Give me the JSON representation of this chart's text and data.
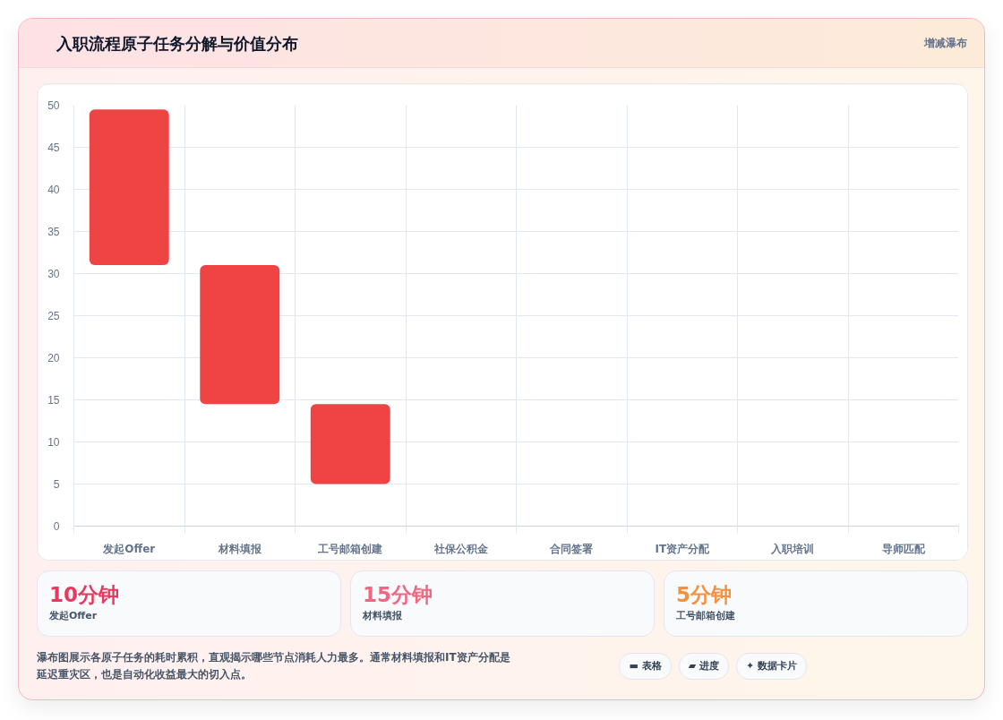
{
  "chart_data": {
    "type": "bar",
    "title": "入职流程原子任务分解与价值分布",
    "categories": [
      "发起Offer",
      "材料填报",
      "工号邮箱创建",
      "社保公积金",
      "合同签署",
      "IT资产分配",
      "入职培训",
      "导师匹配"
    ],
    "base": [
      31,
      14.5,
      5,
      null,
      null,
      null,
      null,
      null
    ],
    "values": [
      18.5,
      16.5,
      9.5,
      null,
      null,
      null,
      null,
      null
    ],
    "color": "#ef4444",
    "ylim": [
      0,
      50
    ],
    "yticks": [
      0,
      5,
      10,
      15,
      20,
      25,
      30,
      35,
      40,
      45,
      50
    ],
    "grid": true,
    "annotations": [
      "增减瀑布",
      "10分钟",
      "发起Offer",
      "15分钟",
      "材料填报",
      "5分钟",
      "工号邮箱创建",
      "瀑布图展示各原子任务的耗时累积，直观揭示哪些节点消耗人力最多。通常材料填报和IT资产分配是延迟重灾区，也是自动化收益最大的切入点。",
      "▬ 表格",
      "▰ 进度",
      "✦ 数据卡片"
    ]
  }
}
